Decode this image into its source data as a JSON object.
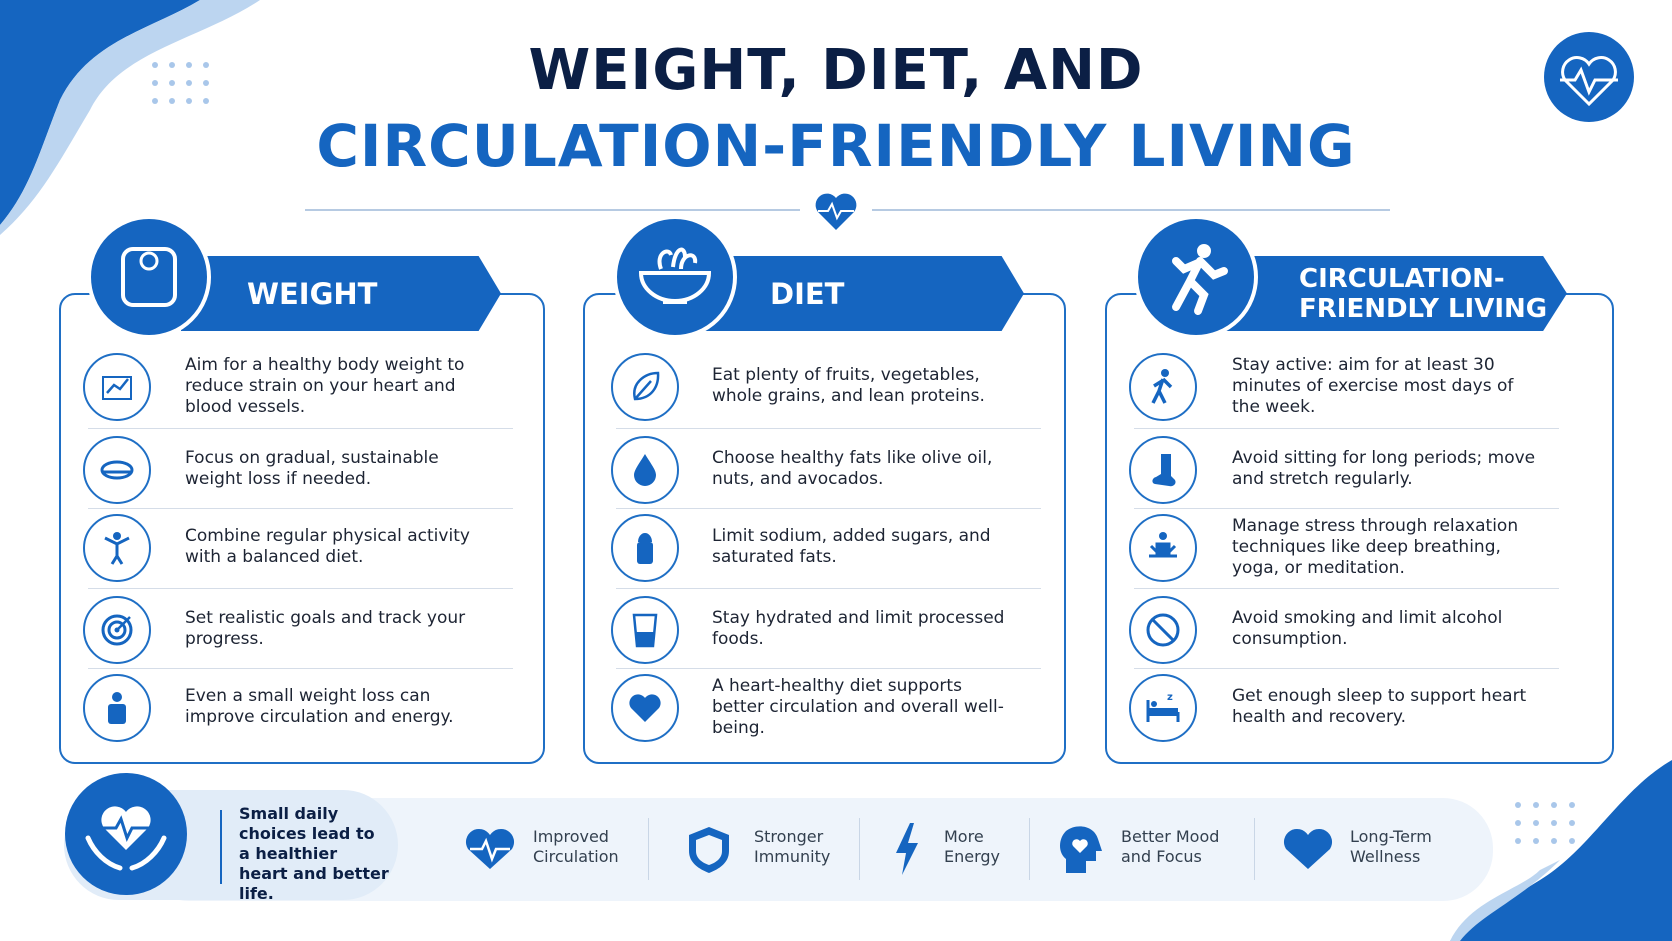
{
  "header": {
    "title_line1": "WEIGHT, DIET, AND",
    "title_line2": "CIRCULATION-FRIENDLY LIVING"
  },
  "sections": [
    {
      "title": "WEIGHT",
      "items": [
        "Aim for a healthy body weight to reduce strain on your heart and blood vessels.",
        "Focus on gradual, sustainable weight loss if needed.",
        "Combine regular physical activity with a balanced diet.",
        "Set realistic goals and track your progress.",
        "Even a small weight loss can improve circulation and energy."
      ]
    },
    {
      "title": "DIET",
      "items": [
        "Eat plenty of fruits, vegetables, whole grains, and lean proteins.",
        "Choose healthy fats like olive oil, nuts, and avocados.",
        "Limit sodium, added sugars, and saturated fats.",
        "Stay hydrated and limit processed foods.",
        "A heart-healthy diet supports better circulation and overall well-being."
      ]
    },
    {
      "title": "CIRCULATION-FRIENDLY LIVING",
      "items": [
        "Stay active: aim for at least 30 minutes of exercise most days of the week.",
        "Avoid sitting for long periods; move and stretch regularly.",
        "Manage stress through relaxation techniques like deep breathing, yoga, or meditation.",
        "Avoid smoking and limit alcohol consumption.",
        "Get enough sleep to support heart health and recovery."
      ]
    }
  ],
  "footer": {
    "tagline": "Small daily choices lead to a healthier heart and better life.",
    "benefits": [
      "Improved Circulation",
      "Stronger Immunity",
      "More Energy",
      "Better Mood and Focus",
      "Long-Term Wellness"
    ]
  }
}
